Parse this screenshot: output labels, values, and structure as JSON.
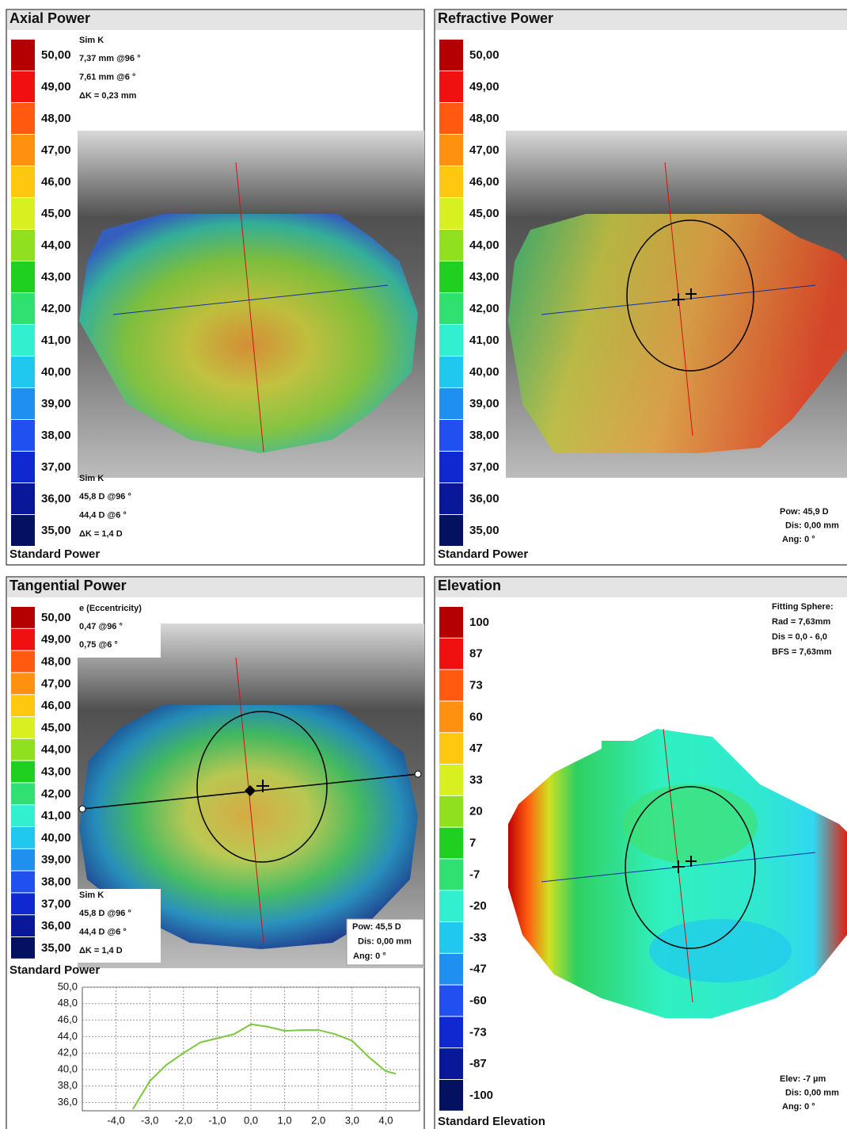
{
  "panels": [
    {
      "title": "Axial Power",
      "footer": "Standard Power",
      "scale": [
        {
          "label": "50,00",
          "color": "#b40000"
        },
        {
          "label": "49,00",
          "color": "#f01010"
        },
        {
          "label": "48,00",
          "color": "#ff5a10"
        },
        {
          "label": "47,00",
          "color": "#ff9010"
        },
        {
          "label": "46,00",
          "color": "#ffc810"
        },
        {
          "label": "45,00",
          "color": "#d8f020"
        },
        {
          "label": "44,00",
          "color": "#90e020"
        },
        {
          "label": "43,00",
          "color": "#20d020"
        },
        {
          "label": "42,00",
          "color": "#30e070"
        },
        {
          "label": "41,00",
          "color": "#30f0d0"
        },
        {
          "label": "40,00",
          "color": "#20c8f0"
        },
        {
          "label": "39,00",
          "color": "#2090f0"
        },
        {
          "label": "38,00",
          "color": "#2050f0"
        },
        {
          "label": "37,00",
          "color": "#1028d0"
        },
        {
          "label": "36,00",
          "color": "#081898"
        },
        {
          "label": "35,00",
          "color": "#041060"
        }
      ],
      "notes_top": [
        "Sim K",
        "7,37 mm @96 °",
        "7,61 mm @6 °",
        "ΔK = 0,23 mm"
      ],
      "notes_bottom": [
        "Sim K",
        "45,8 D @96 °",
        "44,4 D @6 °",
        "ΔK = 1,4 D"
      ]
    },
    {
      "title": "Refractive Power",
      "footer": "Standard Power",
      "scale": [
        {
          "label": "50,00",
          "color": "#b40000"
        },
        {
          "label": "49,00",
          "color": "#f01010"
        },
        {
          "label": "48,00",
          "color": "#ff5a10"
        },
        {
          "label": "47,00",
          "color": "#ff9010"
        },
        {
          "label": "46,00",
          "color": "#ffc810"
        },
        {
          "label": "45,00",
          "color": "#d8f020"
        },
        {
          "label": "44,00",
          "color": "#90e020"
        },
        {
          "label": "43,00",
          "color": "#20d020"
        },
        {
          "label": "42,00",
          "color": "#30e070"
        },
        {
          "label": "41,00",
          "color": "#30f0d0"
        },
        {
          "label": "40,00",
          "color": "#20c8f0"
        },
        {
          "label": "39,00",
          "color": "#2090f0"
        },
        {
          "label": "38,00",
          "color": "#2050f0"
        },
        {
          "label": "37,00",
          "color": "#1028d0"
        },
        {
          "label": "36,00",
          "color": "#081898"
        },
        {
          "label": "35,00",
          "color": "#041060"
        }
      ],
      "notes_bottom_right": [
        "Pow: 45,9 D",
        "Dis: 0,00 mm",
        "Ang: 0 °"
      ]
    },
    {
      "title": "Tangential Power",
      "footer": "Standard Power",
      "scale": [
        {
          "label": "50,00",
          "color": "#b40000"
        },
        {
          "label": "49,00",
          "color": "#f01010"
        },
        {
          "label": "48,00",
          "color": "#ff5a10"
        },
        {
          "label": "47,00",
          "color": "#ff9010"
        },
        {
          "label": "46,00",
          "color": "#ffc810"
        },
        {
          "label": "45,00",
          "color": "#d8f020"
        },
        {
          "label": "44,00",
          "color": "#90e020"
        },
        {
          "label": "43,00",
          "color": "#20d020"
        },
        {
          "label": "42,00",
          "color": "#30e070"
        },
        {
          "label": "41,00",
          "color": "#30f0d0"
        },
        {
          "label": "40,00",
          "color": "#20c8f0"
        },
        {
          "label": "39,00",
          "color": "#2090f0"
        },
        {
          "label": "38,00",
          "color": "#2050f0"
        },
        {
          "label": "37,00",
          "color": "#1028d0"
        },
        {
          "label": "36,00",
          "color": "#081898"
        },
        {
          "label": "35,00",
          "color": "#041060"
        }
      ],
      "notes_top": [
        "e (Eccentricity)",
        "0,47 @96 °",
        "0,75 @6 °"
      ],
      "notes_bottom": [
        "Sim K",
        "45,8 D @96 °",
        "44,4 D @6 °",
        "ΔK = 1,4 D"
      ],
      "notes_bottom_right": [
        "Pow: 45,5 D",
        "Dis: 0,00 mm",
        "Ang: 0 °"
      ]
    },
    {
      "title": "Elevation",
      "footer": "Standard Elevation",
      "scale": [
        {
          "label": "100",
          "color": "#b40000"
        },
        {
          "label": "87",
          "color": "#f01010"
        },
        {
          "label": "73",
          "color": "#ff5a10"
        },
        {
          "label": "60",
          "color": "#ff9010"
        },
        {
          "label": "47",
          "color": "#ffc810"
        },
        {
          "label": "33",
          "color": "#d8f020"
        },
        {
          "label": "20",
          "color": "#90e020"
        },
        {
          "label": "7",
          "color": "#20d020"
        },
        {
          "label": "-7",
          "color": "#30e070"
        },
        {
          "label": "-20",
          "color": "#30f0d0"
        },
        {
          "label": "-33",
          "color": "#20c8f0"
        },
        {
          "label": "-47",
          "color": "#2090f0"
        },
        {
          "label": "-60",
          "color": "#2050f0"
        },
        {
          "label": "-73",
          "color": "#1028d0"
        },
        {
          "label": "-87",
          "color": "#081898"
        },
        {
          "label": "-100",
          "color": "#041060"
        }
      ],
      "notes_top_right": [
        "Fitting Sphere:",
        "Rad = 7,63mm",
        "Dis = 0,0 - 6,0",
        "BFS = 7,63mm"
      ],
      "notes_bottom_right": [
        "Elev: -7 µm",
        "Dis: 0,00 mm",
        "Ang: 0 °"
      ]
    }
  ],
  "profile": {
    "type": "line",
    "color": "#7cc83c",
    "x": [
      -3.5,
      -3.0,
      -2.5,
      -2.0,
      -1.5,
      -1.0,
      -0.5,
      0.0,
      0.5,
      1.0,
      1.5,
      2.0,
      2.5,
      3.0,
      3.5,
      4.0,
      4.3
    ],
    "values": [
      35.2,
      38.6,
      40.6,
      42.0,
      43.3,
      43.8,
      44.3,
      45.5,
      45.2,
      44.7,
      44.8,
      44.8,
      44.3,
      43.5,
      41.5,
      39.8,
      39.5
    ],
    "xlim": [
      -5,
      5
    ],
    "ylim": [
      35,
      50
    ],
    "xticks": [
      {
        "value": -4,
        "label": "-4,0"
      },
      {
        "value": -3,
        "label": "-3,0"
      },
      {
        "value": -2,
        "label": "-2,0"
      },
      {
        "value": -1,
        "label": "-1,0"
      },
      {
        "value": 0,
        "label": "0,0"
      },
      {
        "value": 1,
        "label": "1,0"
      },
      {
        "value": 2,
        "label": "2,0"
      },
      {
        "value": 3,
        "label": "3,0"
      },
      {
        "value": 4,
        "label": "4,0"
      }
    ],
    "yticks": [
      {
        "value": 36,
        "label": "36,0"
      },
      {
        "value": 38,
        "label": "38,0"
      },
      {
        "value": 40,
        "label": "40,0"
      },
      {
        "value": 42,
        "label": "42,0"
      },
      {
        "value": 44,
        "label": "44,0"
      },
      {
        "value": 46,
        "label": "46,0"
      },
      {
        "value": 48,
        "label": "48,0"
      },
      {
        "value": 50,
        "label": "50,0"
      }
    ]
  }
}
